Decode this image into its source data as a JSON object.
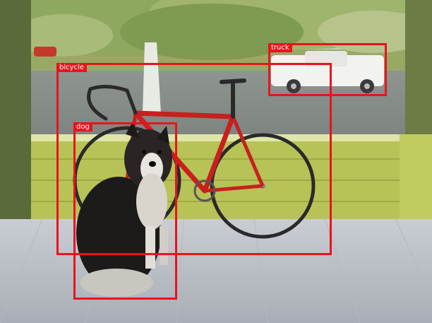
{
  "image": {
    "subject": "porch-scene-with-dog-bicycle-and-truck"
  },
  "style": {
    "box_color": "#e8141c",
    "label_text_color": "#ffffff"
  },
  "detections": [
    {
      "label": "truck"
    },
    {
      "label": "bicycle"
    },
    {
      "label": "dog"
    }
  ]
}
